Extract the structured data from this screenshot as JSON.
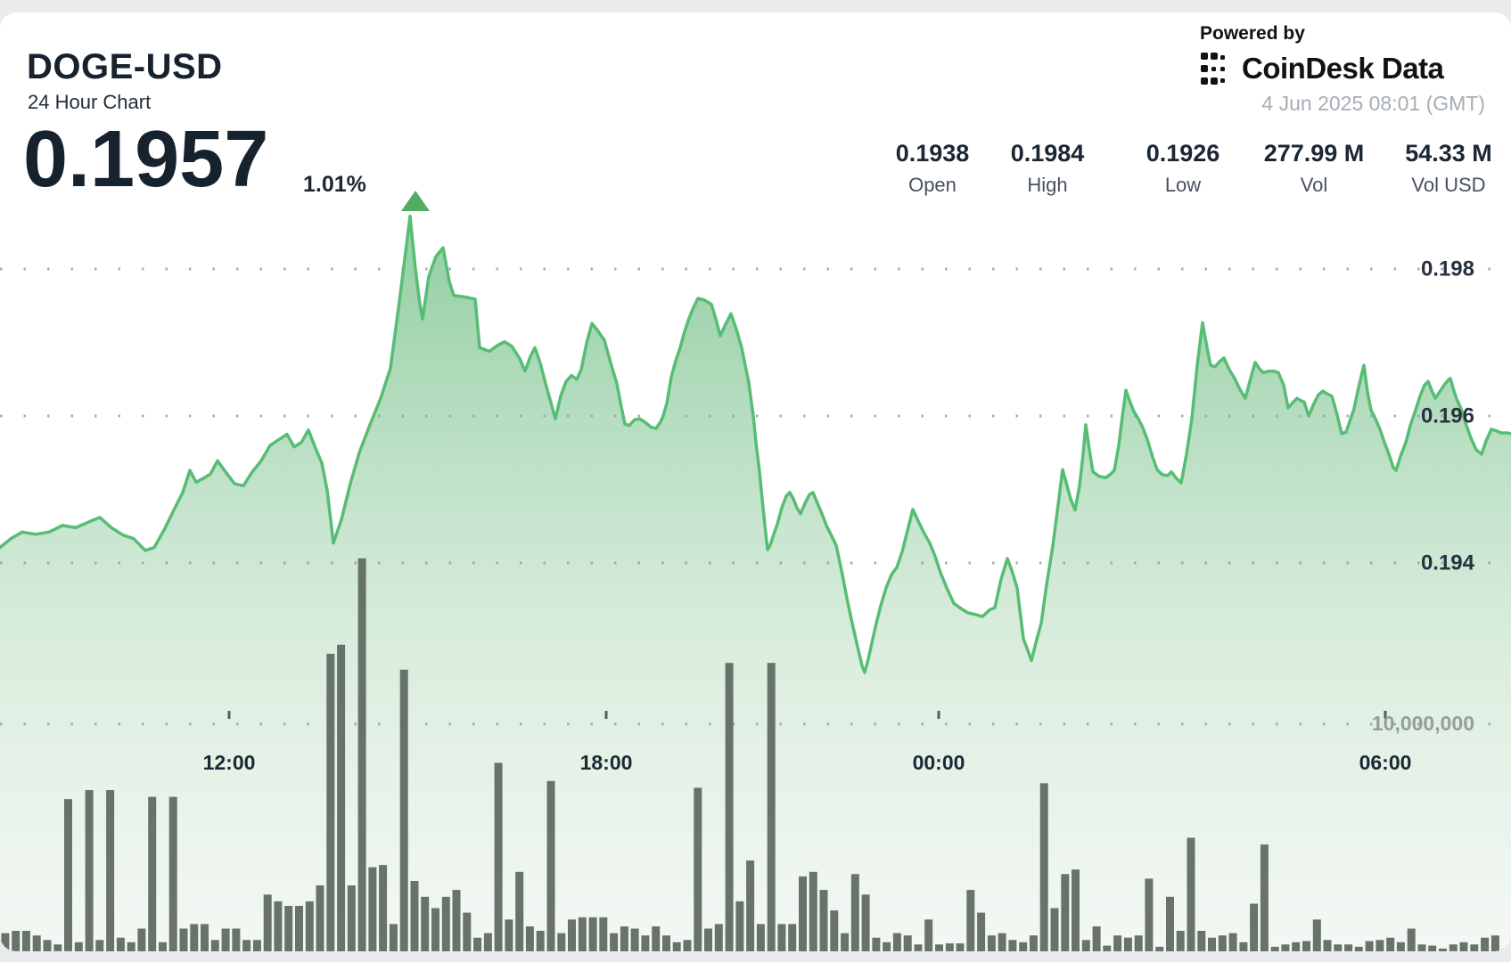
{
  "header": {
    "symbol": "DOGE-USD",
    "subtitle": "24 Hour Chart",
    "price": "0.1957",
    "change_pct": "1.01%",
    "change_direction": "up"
  },
  "attribution": {
    "powered_by": "Powered by",
    "brand": "CoinDesk Data",
    "timestamp": "4 Jun 2025 08:01 (GMT)"
  },
  "stats": [
    {
      "value": "0.1938",
      "label": "Open"
    },
    {
      "value": "0.1984",
      "label": "High"
    },
    {
      "value": "0.1926",
      "label": "Low"
    },
    {
      "value": "277.99 M",
      "label": "Vol"
    },
    {
      "value": "54.33 M",
      "label": "Vol USD"
    }
  ],
  "colors": {
    "line_green": "#57bd74",
    "arrow_green": "#4fae61",
    "area_top": "#8ccb9d",
    "area_bottom": "#ecf3ed",
    "volume_bar": "#5d695e",
    "grid_dot": "#9aa0a5",
    "text_dark": "#16222e",
    "text_gray": "#47515d",
    "timestamp_gray": "#a6adb4",
    "volume_label_gray": "#93a09a",
    "page_bg": "#e9ebed"
  },
  "chart_data": {
    "type": "area",
    "title": "DOGE-USD 24 Hour Chart",
    "grid": "dotted",
    "legend": "none",
    "x_ticks": [
      "12:00",
      "18:00",
      "00:00",
      "06:00"
    ],
    "price_axis": {
      "side": "right",
      "ticks": [
        0.198,
        0.196,
        0.194
      ]
    },
    "volume_axis": {
      "side": "right",
      "tick_label": "10,000,000",
      "tick_value": 10000000
    },
    "summary": {
      "open": 0.1938,
      "high": 0.1984,
      "low": 0.1926,
      "close": 0.1957,
      "vol": "277.99 M",
      "vol_usd": "54.33 M"
    },
    "price_series": [
      [
        0,
        0.19421
      ],
      [
        12,
        0.19433
      ],
      [
        25,
        0.19442
      ],
      [
        40,
        0.19439
      ],
      [
        55,
        0.19442
      ],
      [
        70,
        0.19451
      ],
      [
        85,
        0.19448
      ],
      [
        100,
        0.19456
      ],
      [
        112,
        0.19462
      ],
      [
        125,
        0.19448
      ],
      [
        138,
        0.19438
      ],
      [
        150,
        0.19433
      ],
      [
        163,
        0.19417
      ],
      [
        173,
        0.19421
      ],
      [
        185,
        0.19447
      ],
      [
        195,
        0.19472
      ],
      [
        205,
        0.19496
      ],
      [
        213,
        0.19526
      ],
      [
        220,
        0.1951
      ],
      [
        228,
        0.19515
      ],
      [
        236,
        0.19521
      ],
      [
        244,
        0.19539
      ],
      [
        253,
        0.19524
      ],
      [
        263,
        0.19508
      ],
      [
        273,
        0.19505
      ],
      [
        283,
        0.19524
      ],
      [
        293,
        0.19539
      ],
      [
        303,
        0.1956
      ],
      [
        313,
        0.19568
      ],
      [
        322,
        0.19575
      ],
      [
        330,
        0.19558
      ],
      [
        338,
        0.19564
      ],
      [
        346,
        0.19581
      ],
      [
        354,
        0.19556
      ],
      [
        361,
        0.19536
      ],
      [
        367,
        0.19499
      ],
      [
        374,
        0.19427
      ],
      [
        383,
        0.19459
      ],
      [
        393,
        0.19508
      ],
      [
        403,
        0.1955
      ],
      [
        415,
        0.19588
      ],
      [
        427,
        0.19624
      ],
      [
        438,
        0.19665
      ],
      [
        448,
        0.19756
      ],
      [
        455,
        0.19823
      ],
      [
        460,
        0.19872
      ],
      [
        466,
        0.198
      ],
      [
        471,
        0.19752
      ],
      [
        474,
        0.19732
      ],
      [
        481,
        0.1979
      ],
      [
        489,
        0.19817
      ],
      [
        497,
        0.19829
      ],
      [
        504,
        0.19783
      ],
      [
        509,
        0.19764
      ],
      [
        521,
        0.19762
      ],
      [
        533,
        0.19759
      ],
      [
        538,
        0.19693
      ],
      [
        549,
        0.19688
      ],
      [
        558,
        0.19696
      ],
      [
        566,
        0.19701
      ],
      [
        574,
        0.19695
      ],
      [
        583,
        0.19678
      ],
      [
        589,
        0.19661
      ],
      [
        595,
        0.19681
      ],
      [
        600,
        0.19693
      ],
      [
        606,
        0.19672
      ],
      [
        612,
        0.19644
      ],
      [
        618,
        0.19618
      ],
      [
        623,
        0.19596
      ],
      [
        629,
        0.19627
      ],
      [
        635,
        0.19647
      ],
      [
        641,
        0.19655
      ],
      [
        647,
        0.1965
      ],
      [
        652,
        0.19663
      ],
      [
        658,
        0.19699
      ],
      [
        664,
        0.19726
      ],
      [
        670,
        0.19717
      ],
      [
        678,
        0.19703
      ],
      [
        686,
        0.19668
      ],
      [
        692,
        0.19644
      ],
      [
        697,
        0.19612
      ],
      [
        701,
        0.19589
      ],
      [
        706,
        0.19587
      ],
      [
        712,
        0.19595
      ],
      [
        718,
        0.19596
      ],
      [
        724,
        0.19591
      ],
      [
        730,
        0.19585
      ],
      [
        736,
        0.19583
      ],
      [
        741,
        0.19592
      ],
      [
        744,
        0.196
      ],
      [
        748,
        0.19617
      ],
      [
        753,
        0.19653
      ],
      [
        758,
        0.19675
      ],
      [
        763,
        0.19693
      ],
      [
        768,
        0.19715
      ],
      [
        773,
        0.19733
      ],
      [
        778,
        0.19748
      ],
      [
        783,
        0.1976
      ],
      [
        790,
        0.19758
      ],
      [
        798,
        0.19752
      ],
      [
        803,
        0.19732
      ],
      [
        808,
        0.19709
      ],
      [
        814,
        0.19725
      ],
      [
        820,
        0.19739
      ],
      [
        826,
        0.19718
      ],
      [
        832,
        0.19693
      ],
      [
        840,
        0.19645
      ],
      [
        845,
        0.196
      ],
      [
        848,
        0.19564
      ],
      [
        852,
        0.19524
      ],
      [
        855,
        0.19487
      ],
      [
        858,
        0.19451
      ],
      [
        861,
        0.19418
      ],
      [
        864,
        0.19424
      ],
      [
        868,
        0.19439
      ],
      [
        872,
        0.19453
      ],
      [
        877,
        0.19475
      ],
      [
        882,
        0.19491
      ],
      [
        886,
        0.19496
      ],
      [
        890,
        0.19487
      ],
      [
        894,
        0.19475
      ],
      [
        898,
        0.19467
      ],
      [
        903,
        0.19481
      ],
      [
        908,
        0.19493
      ],
      [
        912,
        0.19496
      ],
      [
        917,
        0.19481
      ],
      [
        922,
        0.19467
      ],
      [
        927,
        0.19451
      ],
      [
        932,
        0.19439
      ],
      [
        938,
        0.19424
      ],
      [
        944,
        0.1939
      ],
      [
        950,
        0.19352
      ],
      [
        956,
        0.19318
      ],
      [
        962,
        0.19286
      ],
      [
        967,
        0.1926
      ],
      [
        970,
        0.19251
      ],
      [
        974,
        0.19269
      ],
      [
        978,
        0.19291
      ],
      [
        983,
        0.19318
      ],
      [
        988,
        0.19342
      ],
      [
        994,
        0.19366
      ],
      [
        1000,
        0.19384
      ],
      [
        1006,
        0.19394
      ],
      [
        1012,
        0.19415
      ],
      [
        1018,
        0.19444
      ],
      [
        1024,
        0.19473
      ],
      [
        1030,
        0.19457
      ],
      [
        1036,
        0.19442
      ],
      [
        1043,
        0.19427
      ],
      [
        1049,
        0.19409
      ],
      [
        1055,
        0.19387
      ],
      [
        1062,
        0.19366
      ],
      [
        1070,
        0.19345
      ],
      [
        1078,
        0.19338
      ],
      [
        1086,
        0.19332
      ],
      [
        1094,
        0.1933
      ],
      [
        1102,
        0.19327
      ],
      [
        1110,
        0.19336
      ],
      [
        1116,
        0.19339
      ],
      [
        1123,
        0.19378
      ],
      [
        1130,
        0.19406
      ],
      [
        1135,
        0.1939
      ],
      [
        1141,
        0.19366
      ],
      [
        1148,
        0.19297
      ],
      [
        1153,
        0.19281
      ],
      [
        1157,
        0.19267
      ],
      [
        1163,
        0.19296
      ],
      [
        1168,
        0.19318
      ],
      [
        1174,
        0.1937
      ],
      [
        1181,
        0.19423
      ],
      [
        1187,
        0.19479
      ],
      [
        1192,
        0.19527
      ],
      [
        1197,
        0.19505
      ],
      [
        1201,
        0.19487
      ],
      [
        1206,
        0.19472
      ],
      [
        1211,
        0.19505
      ],
      [
        1215,
        0.19548
      ],
      [
        1218,
        0.19588
      ],
      [
        1222,
        0.19554
      ],
      [
        1226,
        0.19524
      ],
      [
        1233,
        0.19518
      ],
      [
        1240,
        0.19516
      ],
      [
        1246,
        0.19521
      ],
      [
        1250,
        0.19526
      ],
      [
        1255,
        0.1956
      ],
      [
        1259,
        0.19599
      ],
      [
        1263,
        0.19635
      ],
      [
        1268,
        0.19618
      ],
      [
        1272,
        0.19606
      ],
      [
        1277,
        0.19596
      ],
      [
        1282,
        0.19584
      ],
      [
        1287,
        0.19568
      ],
      [
        1293,
        0.19544
      ],
      [
        1298,
        0.19527
      ],
      [
        1304,
        0.1952
      ],
      [
        1310,
        0.19519
      ],
      [
        1314,
        0.19524
      ],
      [
        1319,
        0.19516
      ],
      [
        1325,
        0.19509
      ],
      [
        1331,
        0.19548
      ],
      [
        1337,
        0.19596
      ],
      [
        1343,
        0.19669
      ],
      [
        1349,
        0.19727
      ],
      [
        1354,
        0.19693
      ],
      [
        1358,
        0.19669
      ],
      [
        1363,
        0.19667
      ],
      [
        1368,
        0.19674
      ],
      [
        1373,
        0.19679
      ],
      [
        1379,
        0.19663
      ],
      [
        1385,
        0.19651
      ],
      [
        1391,
        0.19636
      ],
      [
        1397,
        0.19624
      ],
      [
        1402,
        0.19647
      ],
      [
        1408,
        0.19673
      ],
      [
        1413,
        0.19664
      ],
      [
        1417,
        0.19659
      ],
      [
        1423,
        0.19661
      ],
      [
        1429,
        0.19661
      ],
      [
        1434,
        0.19659
      ],
      [
        1440,
        0.19642
      ],
      [
        1445,
        0.19611
      ],
      [
        1450,
        0.19618
      ],
      [
        1455,
        0.19624
      ],
      [
        1459,
        0.19621
      ],
      [
        1463,
        0.19619
      ],
      [
        1468,
        0.196
      ],
      [
        1474,
        0.19617
      ],
      [
        1479,
        0.19629
      ],
      [
        1484,
        0.19634
      ],
      [
        1489,
        0.1963
      ],
      [
        1494,
        0.19627
      ],
      [
        1499,
        0.19606
      ],
      [
        1505,
        0.19576
      ],
      [
        1510,
        0.19578
      ],
      [
        1515,
        0.19596
      ],
      [
        1519,
        0.1961
      ],
      [
        1524,
        0.19639
      ],
      [
        1530,
        0.19669
      ],
      [
        1534,
        0.19633
      ],
      [
        1538,
        0.19608
      ],
      [
        1543,
        0.19596
      ],
      [
        1548,
        0.19582
      ],
      [
        1553,
        0.19564
      ],
      [
        1558,
        0.19548
      ],
      [
        1563,
        0.1953
      ],
      [
        1566,
        0.19526
      ],
      [
        1571,
        0.19545
      ],
      [
        1577,
        0.19564
      ],
      [
        1582,
        0.19587
      ],
      [
        1588,
        0.19608
      ],
      [
        1593,
        0.19627
      ],
      [
        1598,
        0.19642
      ],
      [
        1602,
        0.19647
      ],
      [
        1606,
        0.19635
      ],
      [
        1610,
        0.19624
      ],
      [
        1615,
        0.19633
      ],
      [
        1620,
        0.19642
      ],
      [
        1624,
        0.19648
      ],
      [
        1627,
        0.19651
      ],
      [
        1630,
        0.19638
      ],
      [
        1634,
        0.19623
      ],
      [
        1639,
        0.1961
      ],
      [
        1645,
        0.19587
      ],
      [
        1650,
        0.1957
      ],
      [
        1656,
        0.19554
      ],
      [
        1662,
        0.19548
      ],
      [
        1667,
        0.19566
      ],
      [
        1673,
        0.19582
      ],
      [
        1678,
        0.1958
      ],
      [
        1684,
        0.19577
      ],
      [
        1690,
        0.19577
      ],
      [
        1695,
        0.19576
      ]
    ],
    "volume_series_millions": [
      0.8,
      0.9,
      0.9,
      0.7,
      0.5,
      0.3,
      6.7,
      0.4,
      7.1,
      0.5,
      7.1,
      0.6,
      0.4,
      1.0,
      6.8,
      0.4,
      6.8,
      1.0,
      1.2,
      1.2,
      0.5,
      1.0,
      1.0,
      0.5,
      0.5,
      2.5,
      2.2,
      2.0,
      2.0,
      2.2,
      2.9,
      13.1,
      13.5,
      2.9,
      17.3,
      3.7,
      3.8,
      1.2,
      12.4,
      3.1,
      2.4,
      1.9,
      2.4,
      2.7,
      1.7,
      0.6,
      0.8,
      8.3,
      1.4,
      3.5,
      1.1,
      0.9,
      7.5,
      0.8,
      1.4,
      1.5,
      1.5,
      1.5,
      0.8,
      1.1,
      1.0,
      0.7,
      1.1,
      0.7,
      0.4,
      0.5,
      7.2,
      1.0,
      1.2,
      12.7,
      2.2,
      4.0,
      1.2,
      12.7,
      1.2,
      1.2,
      3.3,
      3.5,
      2.7,
      1.8,
      0.8,
      3.4,
      2.5,
      0.6,
      0.4,
      0.8,
      0.7,
      0.3,
      1.4,
      0.3,
      0.35,
      0.35,
      2.7,
      1.7,
      0.7,
      0.8,
      0.5,
      0.4,
      0.7,
      7.4,
      1.9,
      3.4,
      3.6,
      0.5,
      1.1,
      0.25,
      0.7,
      0.6,
      0.7,
      3.2,
      0.2,
      2.4,
      0.9,
      5.0,
      0.9,
      0.6,
      0.7,
      0.8,
      0.4,
      2.1,
      4.7,
      0.2,
      0.3,
      0.4,
      0.45,
      1.4,
      0.5,
      0.3,
      0.3,
      0.2,
      0.45,
      0.5,
      0.6,
      0.4,
      1.0,
      0.3,
      0.25,
      0.12,
      0.3,
      0.4,
      0.3,
      0.6,
      0.7,
      0.1
    ]
  }
}
